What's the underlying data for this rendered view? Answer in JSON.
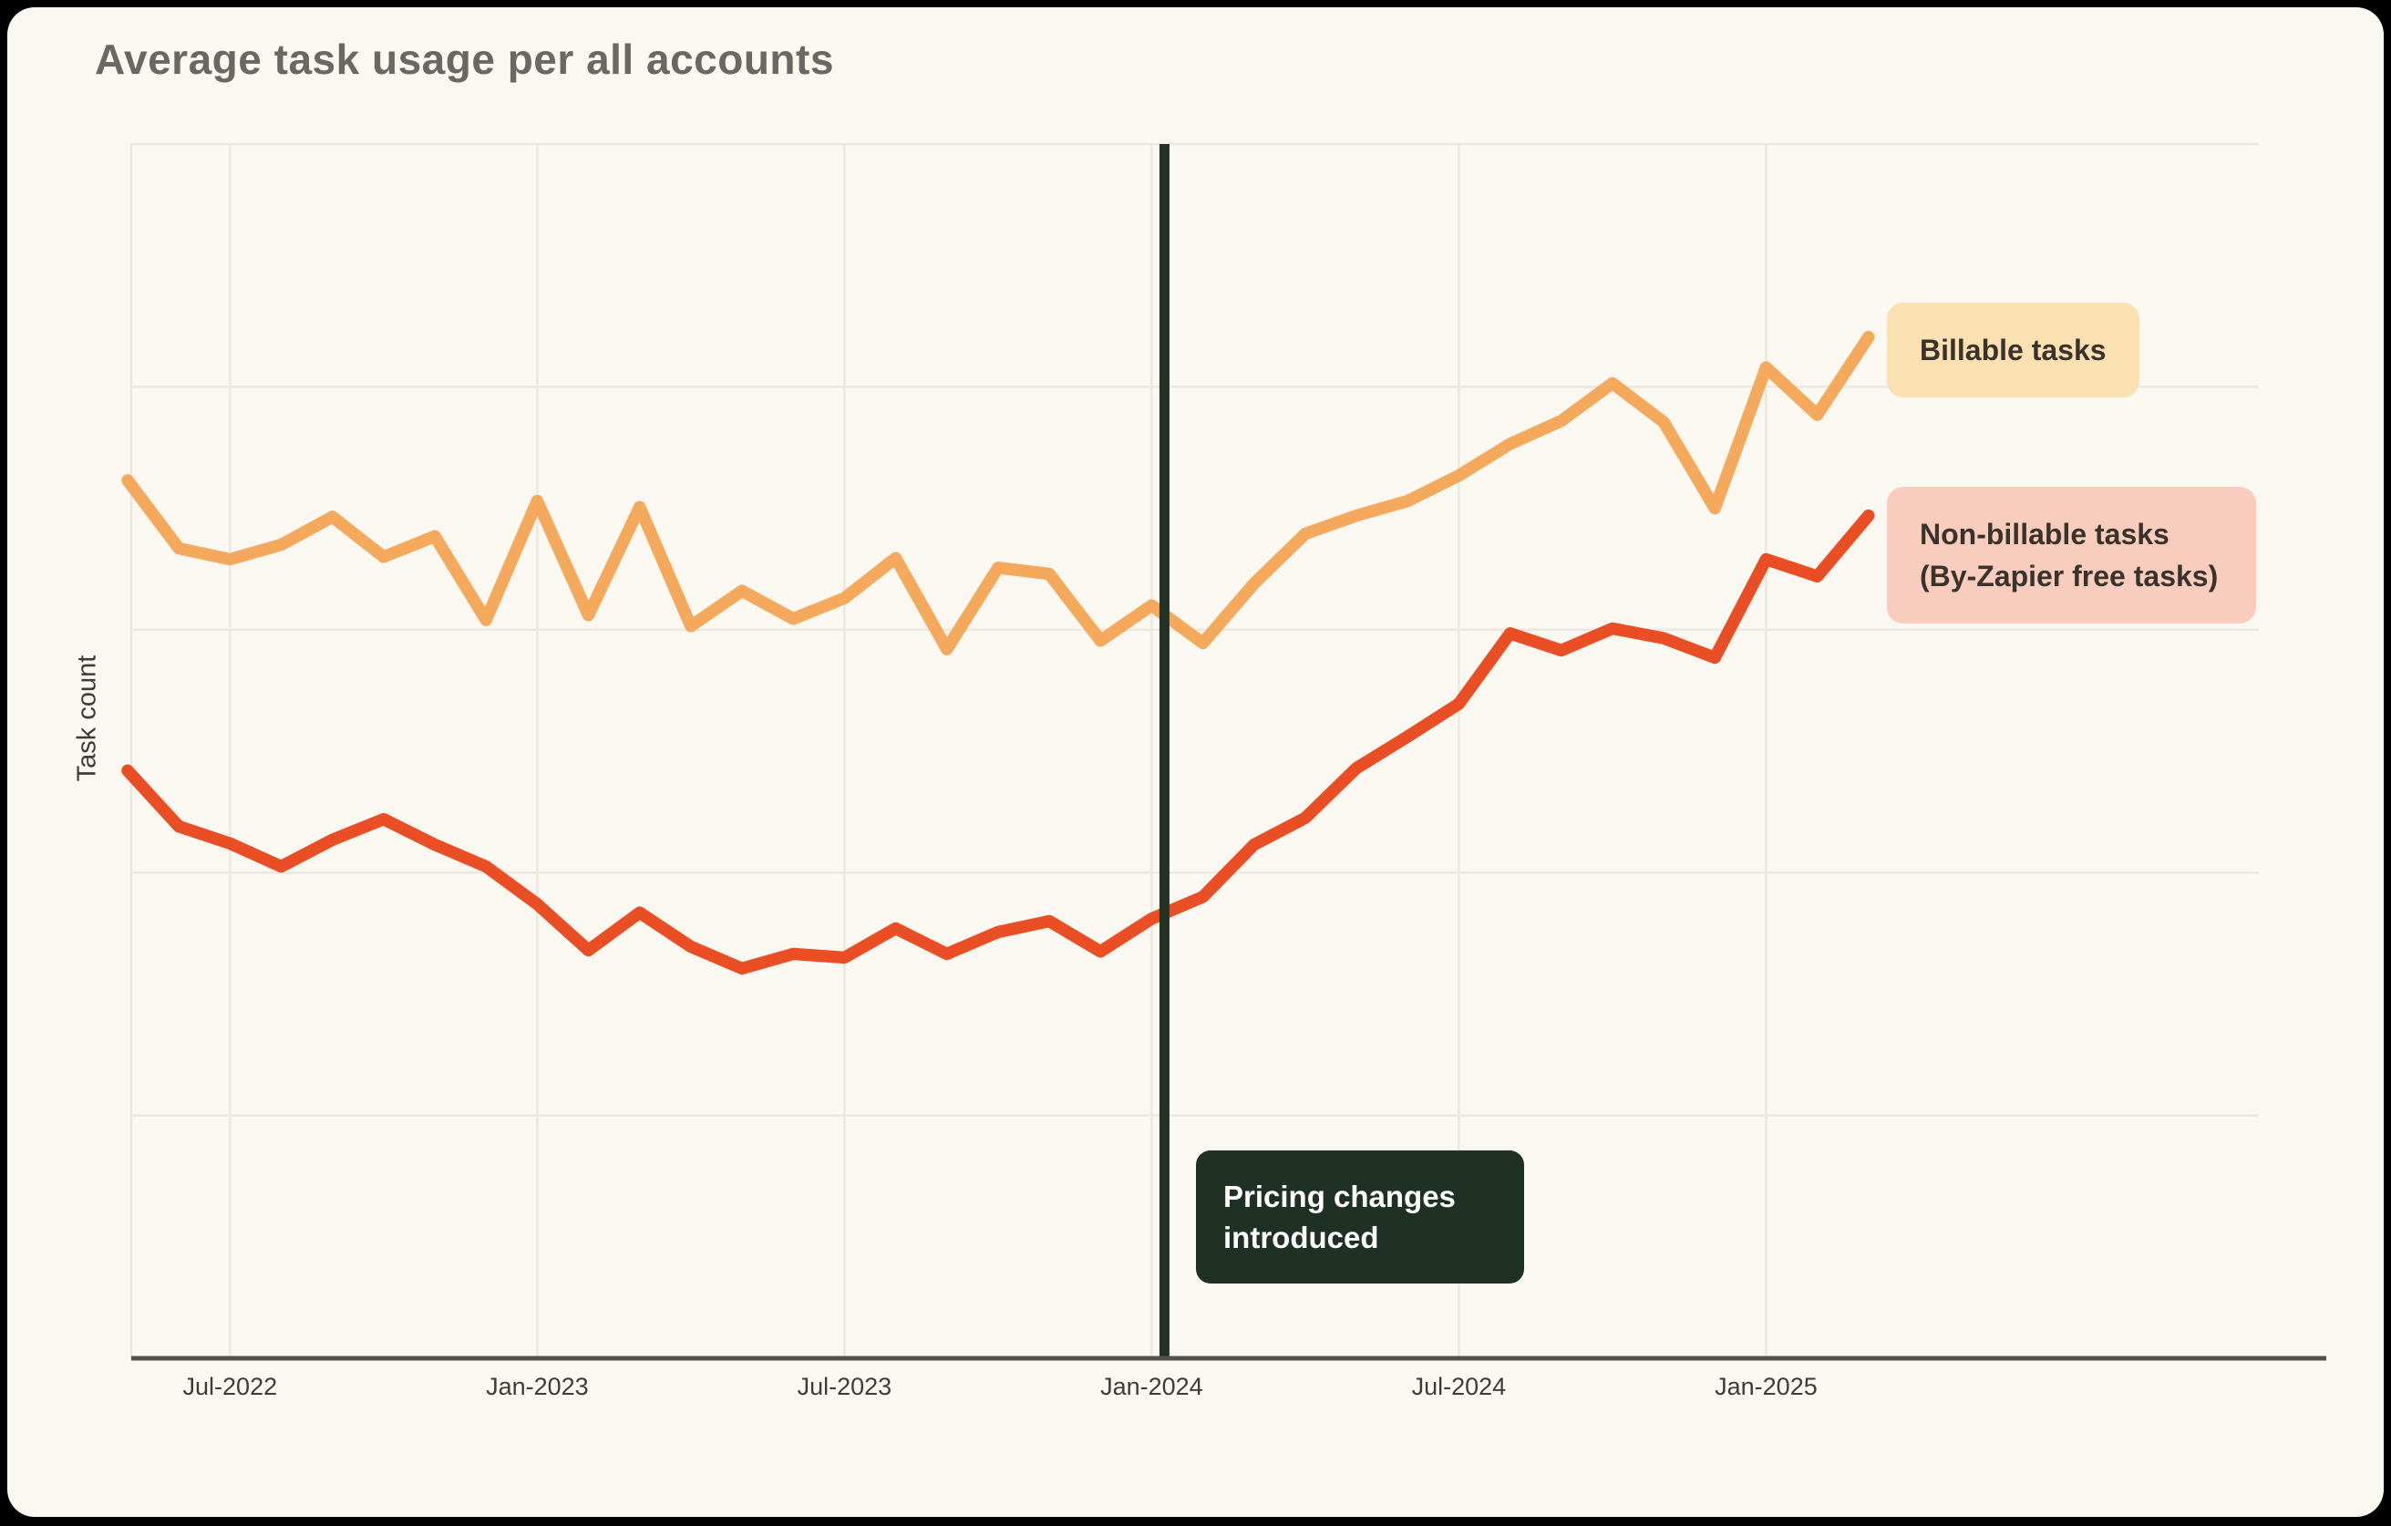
{
  "title": "Average task usage per all accounts",
  "y_axis_label": "Task count",
  "annotation": {
    "label": "Pricing changes introduced",
    "line_color": "#223227",
    "box_color": "#1F3125",
    "text_color": "#FFFFFF"
  },
  "legend": [
    {
      "label": "Billable tasks",
      "chip_color": "#FBE0B2",
      "line_color": "#F4A95D"
    },
    {
      "label": "Non-billable tasks (By-Zapier free tasks)",
      "chip_color": "#F9CDBE",
      "line_color": "#E94E24"
    }
  ],
  "colors": {
    "card_background": "#FBF8F1",
    "frame_background": "#000000",
    "gridline": "#ECE8E0",
    "axis_line": "#50524B",
    "title_text": "#6A6764",
    "tick_text": "#3E3C39"
  },
  "chart_data": {
    "type": "line",
    "title": "Average task usage per all accounts",
    "xlabel": "",
    "ylabel": "Task count",
    "y_units": "relative task count (y-axis shows no numeric tick labels; values estimated as % of plot height)",
    "ylim": [
      0,
      100
    ],
    "grid": true,
    "legend_position": "right",
    "x": [
      "May-2022",
      "Jun-2022",
      "Jul-2022",
      "Aug-2022",
      "Sep-2022",
      "Oct-2022",
      "Nov-2022",
      "Dec-2022",
      "Jan-2023",
      "Feb-2023",
      "Mar-2023",
      "Apr-2023",
      "May-2023",
      "Jun-2023",
      "Jul-2023",
      "Aug-2023",
      "Sep-2023",
      "Oct-2023",
      "Nov-2023",
      "Dec-2023",
      "Jan-2024",
      "Feb-2024",
      "Mar-2024",
      "Apr-2024",
      "May-2024",
      "Jun-2024",
      "Jul-2024",
      "Aug-2024",
      "Sep-2024",
      "Oct-2024",
      "Nov-2024",
      "Dec-2024",
      "Jan-2025",
      "Feb-2025",
      "Mar-2025"
    ],
    "x_tick_labels": [
      "Jul-2022",
      "Jan-2023",
      "Jul-2023",
      "Jan-2024",
      "Jul-2024",
      "Jan-2025"
    ],
    "x_tick_indices": [
      2,
      8,
      14,
      20,
      26,
      32
    ],
    "series": [
      {
        "name": "Billable tasks",
        "color": "#F4A95D",
        "values": [
          72.3,
          66.7,
          65.8,
          67.0,
          69.3,
          66.0,
          67.7,
          60.8,
          70.6,
          61.2,
          70.1,
          60.3,
          63.2,
          60.9,
          62.6,
          65.9,
          58.4,
          65.1,
          64.6,
          59.1,
          62.0,
          58.9,
          63.8,
          67.9,
          69.4,
          70.6,
          72.7,
          75.3,
          77.2,
          80.3,
          77.1,
          70.0,
          81.6,
          77.7,
          84.1
        ]
      },
      {
        "name": "Non-billable tasks (By-Zapier free tasks)",
        "color": "#E94E24",
        "values": [
          48.4,
          43.8,
          42.4,
          40.5,
          42.7,
          44.4,
          42.3,
          40.5,
          37.4,
          33.6,
          36.7,
          33.9,
          32.1,
          33.3,
          33.0,
          35.4,
          33.3,
          35.1,
          36.0,
          33.5,
          36.2,
          38.0,
          42.3,
          44.5,
          48.6,
          51.2,
          53.9,
          59.7,
          58.3,
          60.1,
          59.3,
          57.7,
          65.8,
          64.4,
          69.4
        ]
      }
    ],
    "annotation": {
      "label": "Pricing changes introduced",
      "x": "mid-January 2024",
      "x_index": 20.25
    }
  }
}
